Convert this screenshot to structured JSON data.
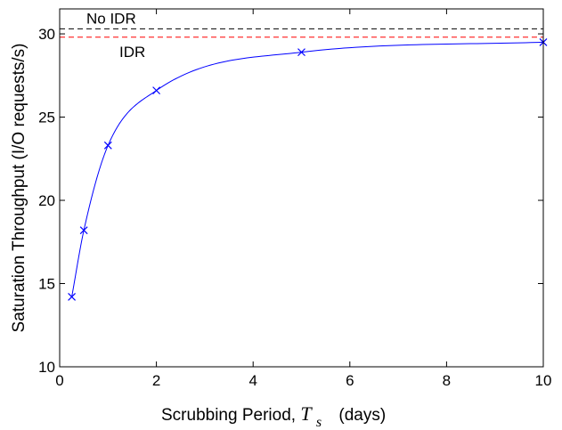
{
  "chart_data": {
    "type": "line",
    "title": "",
    "xlabel_prefix": "Scrubbing Period, ",
    "xlabel_var": "T",
    "xlabel_sub": "s",
    "xlabel_unit": "(days)",
    "ylabel": "Saturation Throughput (I/O requests/s)",
    "xlim": [
      0,
      10
    ],
    "ylim": [
      10,
      31.5
    ],
    "xticks": [
      "0",
      "2",
      "4",
      "6",
      "8",
      "10"
    ],
    "xtick_values": [
      0,
      2,
      4,
      6,
      8,
      10
    ],
    "yticks": [
      "10",
      "15",
      "20",
      "25",
      "30"
    ],
    "ytick_values": [
      10,
      15,
      20,
      25,
      30
    ],
    "grid": false,
    "series": [
      {
        "points": [
          {
            "x": 0.25,
            "y": 14.2
          },
          {
            "x": 0.5,
            "y": 18.2
          },
          {
            "x": 1,
            "y": 23.3
          },
          {
            "x": 2,
            "y": 26.6
          },
          {
            "x": 5,
            "y": 28.9
          },
          {
            "x": 10,
            "y": 29.5
          }
        ],
        "color": "#0000ff",
        "marker": "x"
      }
    ],
    "reference_lines": [
      {
        "label": "No IDR",
        "y": 30.3,
        "color": "#000000",
        "style": "dashed"
      },
      {
        "label": "IDR",
        "y": 29.8,
        "color": "#ff0000",
        "style": "dashed"
      }
    ]
  }
}
